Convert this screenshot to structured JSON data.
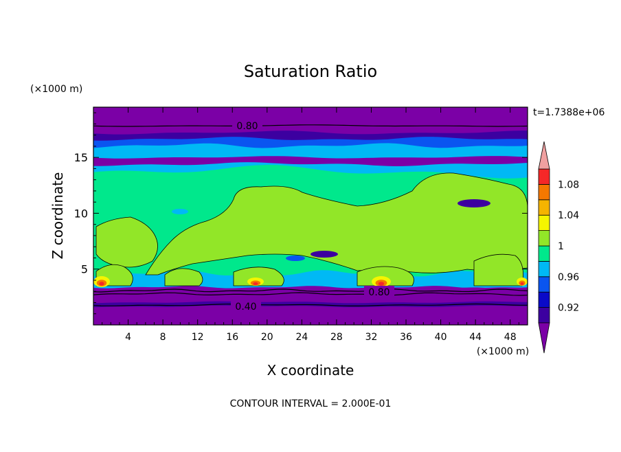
{
  "chart_data": {
    "type": "heatmap",
    "title": "Saturation Ratio",
    "xlabel": "X coordinate",
    "ylabel": "Z coordinate",
    "x_unit": "(×1000 m)",
    "y_unit": "(×1000 m)",
    "time_label": "t=1.7388e+06",
    "footer": "CONTOUR INTERVAL = 2.000E-01",
    "xlim": [
      0,
      50
    ],
    "ylim": [
      0,
      19.5
    ],
    "x_ticks": [
      "4",
      "8",
      "12",
      "16",
      "20",
      "24",
      "28",
      "32",
      "36",
      "40",
      "44",
      "48"
    ],
    "y_ticks": [
      "5",
      "10",
      "15"
    ],
    "colorbar_labels": [
      "1.08",
      "1.04",
      "1",
      "0.96",
      "0.92"
    ],
    "contour_labels": [
      "0.80",
      "0.80",
      "0.40"
    ],
    "colorbar_levels": [
      {
        "range": "<0.90",
        "color": "#7b00a6"
      },
      {
        "range": "0.90-0.92",
        "color": "#3c00a0"
      },
      {
        "range": "0.92-0.94",
        "color": "#0a0ac8"
      },
      {
        "range": "0.94-0.96",
        "color": "#0a55f0"
      },
      {
        "range": "0.96-0.98",
        "color": "#00b9f5"
      },
      {
        "range": "0.98-1.00",
        "color": "#00e88c"
      },
      {
        "range": "1.00-1.02",
        "color": "#92e628"
      },
      {
        "range": "1.02-1.04",
        "color": "#f5f500"
      },
      {
        "range": "1.04-1.06",
        "color": "#f5b400"
      },
      {
        "range": "1.06-1.08",
        "color": "#f57800"
      },
      {
        "range": "1.08-1.10",
        "color": "#f52828"
      },
      {
        "range": ">1.10",
        "color": "#f0a0a0"
      }
    ],
    "approx_layers": [
      {
        "z_range": [
          0,
          3.3
        ],
        "value": "<0.90"
      },
      {
        "z_range": [
          3.3,
          5.5
        ],
        "value": "0.96-1.02 with 1.04-1.08 near surface"
      },
      {
        "z_range": [
          5.5,
          12.5
        ],
        "value": "0.98-1.02"
      },
      {
        "z_range": [
          12.5,
          17
        ],
        "value": "0.92-0.98"
      },
      {
        "z_range": [
          17,
          19.5
        ],
        "value": "<0.90"
      }
    ]
  },
  "colors": {
    "deep_purple": "#7b00a6",
    "indigo": "#3c00a0",
    "dark_blue": "#0a0ac8",
    "blue": "#0a55f0",
    "cyan": "#00b9f5",
    "green": "#00e88c",
    "yellow_green": "#92e628"
  }
}
